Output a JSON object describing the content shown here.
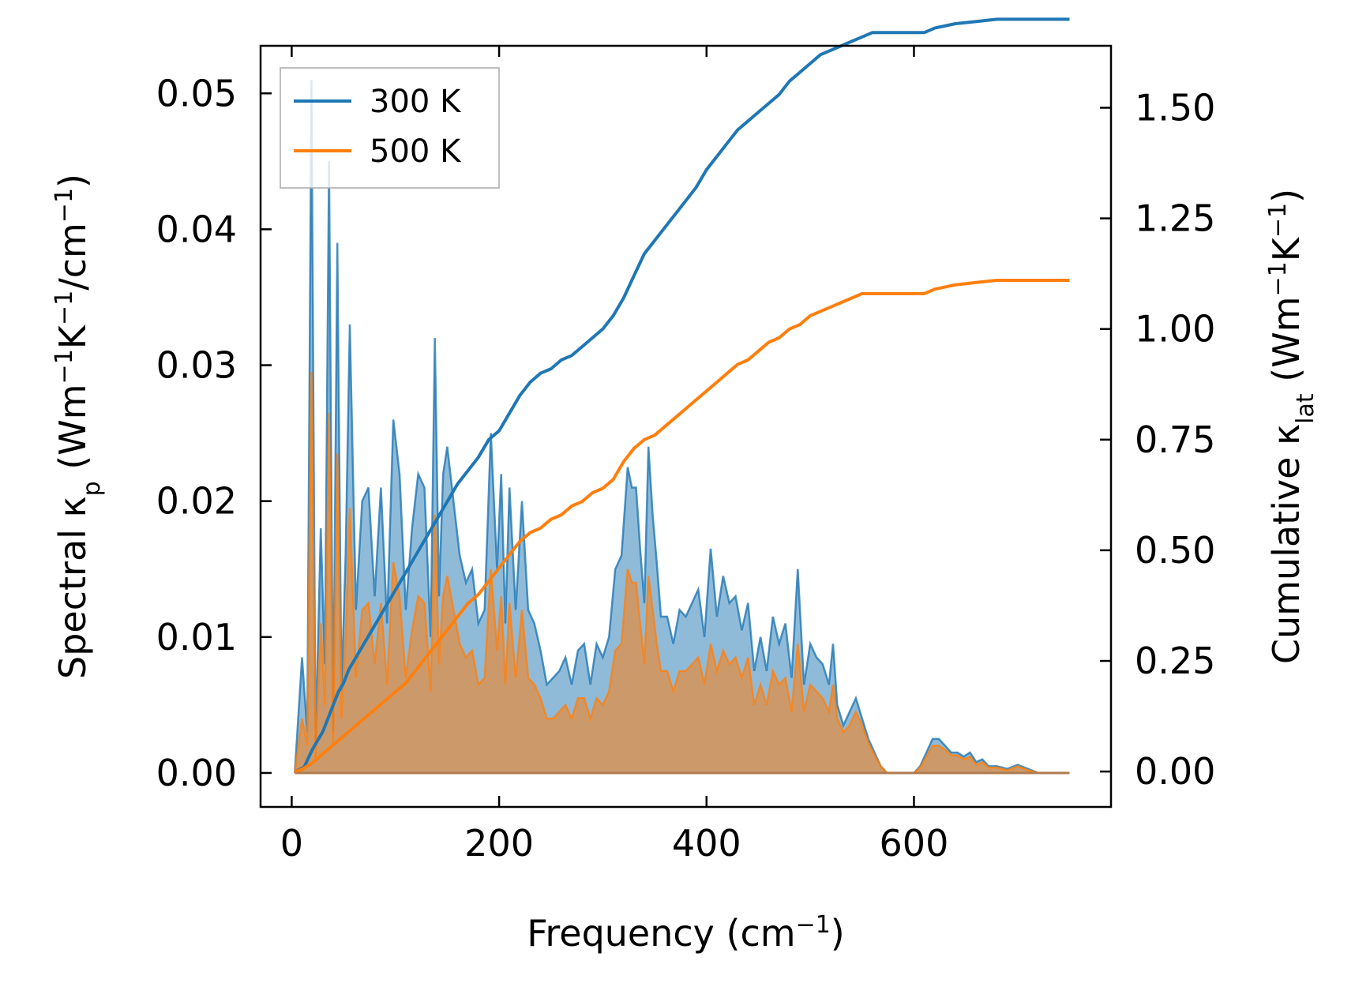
{
  "chart_data": {
    "type": "area",
    "xlabel": {
      "main": "Frequency (cm",
      "sup": "−1",
      "tail": ")"
    },
    "ylabel_left": {
      "parts": [
        {
          "t": "Spectral κ"
        },
        {
          "t": "p",
          "sub": true
        },
        {
          "t": " (Wm"
        },
        {
          "t": "−1",
          "sup": true
        },
        {
          "t": "K"
        },
        {
          "t": "−1",
          "sup": true
        },
        {
          "t": "/cm"
        },
        {
          "t": "−1",
          "sup": true
        },
        {
          "t": ")"
        }
      ]
    },
    "ylabel_right": {
      "parts": [
        {
          "t": "Cumulative κ"
        },
        {
          "t": "lat",
          "sub": true
        },
        {
          "t": " (Wm"
        },
        {
          "t": "−1",
          "sup": true
        },
        {
          "t": "K"
        },
        {
          "t": "−1",
          "sup": true
        },
        {
          "t": ")"
        }
      ]
    },
    "xlim": [
      -30,
      790
    ],
    "ylim_left": [
      -0.0025,
      0.0535
    ],
    "ylim_right": [
      -0.08,
      1.64
    ],
    "xticks": [
      0,
      200,
      400,
      600
    ],
    "xtick_labels": [
      "0",
      "200",
      "400",
      "600"
    ],
    "yticks_left": [
      0.0,
      0.01,
      0.02,
      0.03,
      0.04,
      0.05
    ],
    "ytick_labels_left": [
      "0.00",
      "0.01",
      "0.02",
      "0.03",
      "0.04",
      "0.05"
    ],
    "yticks_right": [
      0.0,
      0.25,
      0.5,
      0.75,
      1.0,
      1.25,
      1.5
    ],
    "ytick_labels_right": [
      "0.00",
      "0.25",
      "0.50",
      "0.75",
      "1.00",
      "1.25",
      "1.50"
    ],
    "grid": false,
    "legend_position": "top-left",
    "legend": [
      {
        "label": "300 K",
        "color": "#1f77b4"
      },
      {
        "label": "500 K",
        "color": "#ff7f0e"
      }
    ],
    "spectral_x": [
      3,
      10,
      15,
      19,
      23,
      28,
      32,
      36,
      40,
      44,
      48,
      52,
      56,
      62,
      68,
      74,
      80,
      86,
      92,
      98,
      104,
      110,
      116,
      122,
      128,
      134,
      138,
      142,
      146,
      150,
      156,
      162,
      168,
      174,
      180,
      186,
      192,
      198,
      202,
      206,
      210,
      216,
      222,
      228,
      234,
      240,
      246,
      252,
      258,
      264,
      270,
      276,
      282,
      288,
      294,
      300,
      306,
      312,
      318,
      324,
      328,
      332,
      336,
      340,
      344,
      348,
      352,
      356,
      362,
      368,
      374,
      380,
      386,
      392,
      398,
      404,
      410,
      416,
      422,
      428,
      434,
      440,
      446,
      452,
      458,
      464,
      470,
      476,
      482,
      488,
      494,
      500,
      506,
      512,
      518,
      522,
      526,
      532,
      538,
      544,
      550,
      556,
      562,
      568,
      574,
      580,
      590,
      600,
      606,
      612,
      618,
      624,
      630,
      636,
      642,
      648,
      654,
      660,
      666,
      672,
      680,
      690,
      700,
      710,
      720,
      740,
      750
    ],
    "series": [
      {
        "name": "300 K",
        "color": "#1f77b4",
        "spectral": [
          0.0,
          0.0085,
          0.003,
          0.051,
          0.002,
          0.018,
          0.008,
          0.045,
          0.003,
          0.039,
          0.006,
          0.016,
          0.033,
          0.012,
          0.02,
          0.021,
          0.013,
          0.021,
          0.011,
          0.026,
          0.022,
          0.012,
          0.018,
          0.022,
          0.021,
          0.01,
          0.032,
          0.013,
          0.022,
          0.024,
          0.02,
          0.016,
          0.014,
          0.015,
          0.011,
          0.012,
          0.025,
          0.015,
          0.022,
          0.011,
          0.021,
          0.012,
          0.02,
          0.012,
          0.011,
          0.009,
          0.0065,
          0.007,
          0.0075,
          0.0085,
          0.0065,
          0.009,
          0.0095,
          0.0065,
          0.0095,
          0.0085,
          0.01,
          0.015,
          0.016,
          0.0225,
          0.021,
          0.021,
          0.0165,
          0.0125,
          0.024,
          0.019,
          0.0155,
          0.0115,
          0.0115,
          0.0095,
          0.012,
          0.0115,
          0.0125,
          0.0135,
          0.01,
          0.0165,
          0.0115,
          0.0145,
          0.0125,
          0.013,
          0.0105,
          0.0125,
          0.0075,
          0.01,
          0.0075,
          0.0115,
          0.0095,
          0.011,
          0.007,
          0.015,
          0.0065,
          0.0095,
          0.0085,
          0.008,
          0.0065,
          0.0095,
          0.005,
          0.0035,
          0.0045,
          0.0055,
          0.004,
          0.0025,
          0.0015,
          0.0005,
          0.0,
          0.0,
          0.0,
          0.0,
          0.0005,
          0.0015,
          0.0025,
          0.0025,
          0.002,
          0.0015,
          0.0015,
          0.0012,
          0.0015,
          0.0008,
          0.001,
          0.0005,
          0.0005,
          0.0003,
          0.0006,
          0.0003,
          0.0,
          0.0,
          0.0
        ],
        "cumulative_x": [
          3,
          8,
          12,
          16,
          20,
          25,
          30,
          35,
          40,
          45,
          50,
          55,
          60,
          70,
          80,
          90,
          100,
          110,
          120,
          130,
          140,
          150,
          160,
          170,
          180,
          190,
          200,
          210,
          220,
          230,
          240,
          250,
          260,
          270,
          280,
          290,
          300,
          310,
          320,
          330,
          340,
          350,
          360,
          370,
          380,
          390,
          400,
          410,
          420,
          430,
          440,
          450,
          460,
          470,
          480,
          490,
          500,
          510,
          520,
          530,
          540,
          550,
          560,
          570,
          580,
          590,
          600,
          610,
          620,
          640,
          660,
          680,
          700,
          720,
          750
        ],
        "cumulative": [
          0.0,
          0.005,
          0.01,
          0.03,
          0.05,
          0.07,
          0.09,
          0.12,
          0.15,
          0.18,
          0.2,
          0.23,
          0.25,
          0.29,
          0.33,
          0.37,
          0.41,
          0.45,
          0.49,
          0.53,
          0.57,
          0.61,
          0.65,
          0.68,
          0.71,
          0.75,
          0.77,
          0.81,
          0.85,
          0.88,
          0.9,
          0.91,
          0.93,
          0.94,
          0.96,
          0.98,
          1.0,
          1.03,
          1.07,
          1.12,
          1.17,
          1.2,
          1.23,
          1.26,
          1.29,
          1.32,
          1.36,
          1.39,
          1.42,
          1.45,
          1.47,
          1.49,
          1.51,
          1.53,
          1.56,
          1.58,
          1.6,
          1.62,
          1.63,
          1.64,
          1.65,
          1.66,
          1.67,
          1.67,
          1.67,
          1.67,
          1.67,
          1.67,
          1.68,
          1.69,
          1.695,
          1.7,
          1.7,
          1.7,
          1.7
        ]
      },
      {
        "name": "500 K",
        "color": "#ff7f0e",
        "spectral": [
          0.0,
          0.004,
          0.002,
          0.0295,
          0.001,
          0.011,
          0.005,
          0.0265,
          0.002,
          0.0235,
          0.004,
          0.01,
          0.0195,
          0.007,
          0.012,
          0.0125,
          0.008,
          0.0125,
          0.0065,
          0.0155,
          0.013,
          0.007,
          0.0105,
          0.013,
          0.0125,
          0.006,
          0.019,
          0.008,
          0.013,
          0.0145,
          0.012,
          0.0095,
          0.0085,
          0.009,
          0.0065,
          0.007,
          0.015,
          0.009,
          0.013,
          0.0065,
          0.0125,
          0.007,
          0.012,
          0.007,
          0.0065,
          0.0055,
          0.004,
          0.004,
          0.0045,
          0.005,
          0.004,
          0.0055,
          0.0055,
          0.004,
          0.0055,
          0.005,
          0.006,
          0.009,
          0.0095,
          0.015,
          0.014,
          0.014,
          0.011,
          0.008,
          0.0145,
          0.012,
          0.0095,
          0.0075,
          0.0075,
          0.006,
          0.0075,
          0.0075,
          0.008,
          0.0085,
          0.0065,
          0.0095,
          0.0075,
          0.009,
          0.008,
          0.0085,
          0.007,
          0.0085,
          0.005,
          0.0065,
          0.005,
          0.0075,
          0.0065,
          0.007,
          0.0045,
          0.0095,
          0.0045,
          0.0065,
          0.006,
          0.0055,
          0.0045,
          0.0065,
          0.004,
          0.003,
          0.0035,
          0.0045,
          0.0035,
          0.0022,
          0.0013,
          0.0005,
          0.0,
          0.0,
          0.0,
          0.0,
          0.0004,
          0.0012,
          0.002,
          0.002,
          0.0017,
          0.0013,
          0.0013,
          0.001,
          0.0012,
          0.0006,
          0.0008,
          0.0004,
          0.0004,
          0.0002,
          0.0005,
          0.0002,
          0.0,
          0.0,
          0.0
        ],
        "cumulative_x": [
          3,
          10,
          20,
          30,
          40,
          50,
          60,
          70,
          80,
          90,
          100,
          110,
          120,
          130,
          140,
          150,
          160,
          170,
          180,
          190,
          200,
          210,
          220,
          230,
          240,
          250,
          260,
          270,
          280,
          290,
          300,
          310,
          320,
          330,
          340,
          350,
          360,
          370,
          380,
          390,
          400,
          410,
          420,
          430,
          440,
          450,
          460,
          470,
          480,
          490,
          500,
          510,
          520,
          530,
          540,
          550,
          560,
          570,
          580,
          590,
          600,
          610,
          620,
          640,
          660,
          680,
          700,
          720,
          750
        ],
        "cumulative": [
          0.0,
          0.005,
          0.02,
          0.04,
          0.06,
          0.08,
          0.1,
          0.12,
          0.14,
          0.16,
          0.18,
          0.2,
          0.23,
          0.26,
          0.29,
          0.32,
          0.35,
          0.38,
          0.4,
          0.43,
          0.46,
          0.49,
          0.52,
          0.54,
          0.55,
          0.57,
          0.58,
          0.6,
          0.61,
          0.63,
          0.64,
          0.66,
          0.7,
          0.73,
          0.75,
          0.76,
          0.78,
          0.8,
          0.82,
          0.84,
          0.86,
          0.88,
          0.9,
          0.92,
          0.93,
          0.95,
          0.97,
          0.98,
          1.0,
          1.01,
          1.03,
          1.04,
          1.05,
          1.06,
          1.07,
          1.08,
          1.08,
          1.08,
          1.08,
          1.08,
          1.08,
          1.08,
          1.09,
          1.1,
          1.105,
          1.11,
          1.11,
          1.11,
          1.11
        ]
      }
    ]
  }
}
